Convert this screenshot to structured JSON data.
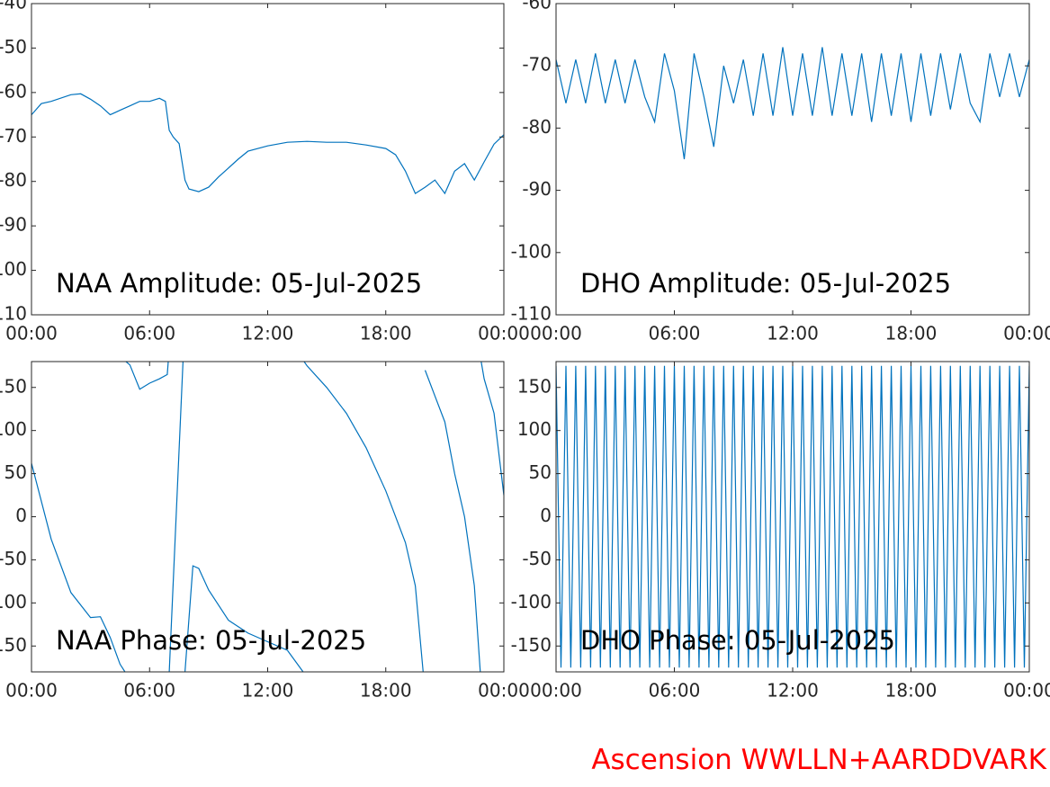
{
  "chart_data": [
    {
      "type": "line",
      "annotation": "NAA Amplitude: 05-Jul-2025",
      "color": "#0072bd",
      "xlim": [
        0,
        24
      ],
      "xticks": [
        {
          "value": 0,
          "label": "00:00"
        },
        {
          "value": 6,
          "label": "06:00"
        },
        {
          "value": 12,
          "label": "12:00"
        },
        {
          "value": 18,
          "label": "18:00"
        },
        {
          "value": 24,
          "label": "00:00"
        }
      ],
      "ylim": [
        -110,
        -40
      ],
      "yticks": [
        -110,
        -100,
        -90,
        -80,
        -70,
        -60,
        -50,
        -40
      ],
      "x": [
        0,
        0.5,
        1,
        2,
        2.5,
        3,
        3.5,
        4,
        4.5,
        5,
        5.5,
        6,
        6.5,
        6.8,
        7,
        7.2,
        7.5,
        7.8,
        8,
        8.5,
        9,
        9.5,
        10,
        10.5,
        11,
        12,
        13,
        14,
        15,
        16,
        17,
        18,
        18.5,
        19,
        19.5,
        20,
        20.5,
        21,
        21.5,
        22,
        22.5,
        23,
        23.5,
        24
      ],
      "values": [
        -65,
        -62.5,
        -62,
        -60.5,
        -60.3,
        -61.5,
        -63,
        -65,
        -64,
        -63,
        -62,
        -62,
        -61.3,
        -62,
        -68.5,
        -70,
        -71.5,
        -79.7,
        -81.7,
        -82.3,
        -81.3,
        -79,
        -77,
        -75,
        -73.2,
        -72,
        -71.2,
        -71,
        -71.2,
        -71.2,
        -71.8,
        -72.6,
        -74,
        -77.7,
        -82.7,
        -81.3,
        -79.7,
        -82.7,
        -77.7,
        -76,
        -79.7,
        -75.6,
        -71.6,
        -69.5
      ]
    },
    {
      "type": "line",
      "annotation": "DHO Amplitude: 05-Jul-2025",
      "color": "#0072bd",
      "xlim": [
        0,
        24
      ],
      "xticks": [
        {
          "value": 0,
          "label": "00:00"
        },
        {
          "value": 6,
          "label": "06:00"
        },
        {
          "value": 12,
          "label": "12:00"
        },
        {
          "value": 18,
          "label": "18:00"
        },
        {
          "value": 24,
          "label": "00:00"
        }
      ],
      "ylim": [
        -110,
        -60
      ],
      "yticks": [
        -110,
        -100,
        -90,
        -80,
        -70,
        -60
      ],
      "x": [
        0,
        0.5,
        1,
        1.5,
        2,
        2.5,
        3,
        3.5,
        4,
        4.5,
        5,
        5.5,
        6,
        6.5,
        7,
        7.5,
        8,
        8.5,
        9,
        9.5,
        10,
        10.5,
        11,
        11.5,
        12,
        12.5,
        13,
        13.5,
        14,
        14.5,
        15,
        15.5,
        16,
        16.5,
        17,
        17.5,
        18,
        18.5,
        19,
        19.5,
        20,
        20.5,
        21,
        21.5,
        22,
        22.5,
        23,
        23.5,
        24
      ],
      "values": [
        -69,
        -76,
        -69,
        -76,
        -68,
        -76,
        -69,
        -76,
        -69,
        -75,
        -79,
        -68,
        -74,
        -85,
        -68,
        -75,
        -83,
        -70,
        -76,
        -69,
        -78,
        -68,
        -78,
        -67,
        -78,
        -68,
        -78,
        -67,
        -78,
        -68,
        -78,
        -68,
        -79,
        -68,
        -78,
        -68,
        -79,
        -68,
        -78,
        -68,
        -77,
        -68,
        -76,
        -79,
        -68,
        -75,
        -68,
        -75,
        -69
      ]
    },
    {
      "type": "line",
      "annotation": "NAA Phase: 05-Jul-2025",
      "color": "#0072bd",
      "xlim": [
        0,
        24
      ],
      "xticks": [
        {
          "value": 0,
          "label": "00:00"
        },
        {
          "value": 6,
          "label": "06:00"
        },
        {
          "value": 12,
          "label": "12:00"
        },
        {
          "value": 18,
          "label": "18:00"
        },
        {
          "value": 24,
          "label": "00:00"
        }
      ],
      "ylim": [
        -180,
        180
      ],
      "yticks": [
        -150,
        -100,
        -50,
        0,
        50,
        100,
        150
      ],
      "x": [
        0,
        1,
        2,
        3,
        3.5,
        4,
        4.5,
        4.75,
        4.76,
        4.8,
        5,
        5.5,
        6,
        6.5,
        6.9,
        6.95,
        6.96,
        7,
        7.7,
        7.71,
        7.8,
        8.2,
        8.5,
        9,
        10,
        11,
        12,
        13,
        13.8,
        13.81,
        13.85,
        14,
        15,
        16,
        17,
        18,
        19,
        19.5,
        19.9,
        19.91,
        20,
        20.5,
        21,
        21.5,
        22,
        22.5,
        22.8,
        22.81,
        22.85,
        23,
        23.5,
        24
      ],
      "values": [
        62,
        -26,
        -88,
        -117,
        -116,
        -140,
        -171,
        -180,
        null,
        180,
        176,
        148,
        155,
        160,
        165,
        180,
        null,
        -180,
        180,
        null,
        -180,
        -57,
        -60,
        -85,
        -120,
        -135,
        -145,
        -155,
        -180,
        null,
        180,
        175,
        150,
        120,
        80,
        30,
        -30,
        -80,
        -180,
        null,
        170,
        140,
        110,
        50,
        0,
        -80,
        -180,
        null,
        180,
        160,
        120,
        25
      ]
    },
    {
      "type": "line",
      "annotation": "DHO Phase: 05-Jul-2025",
      "color": "#0072bd",
      "xlim": [
        0,
        24
      ],
      "xticks": [
        {
          "value": 0,
          "label": "00:00"
        },
        {
          "value": 6,
          "label": "06:00"
        },
        {
          "value": 12,
          "label": "12:00"
        },
        {
          "value": 18,
          "label": "18:00"
        },
        {
          "value": 24,
          "label": "00:00"
        }
      ],
      "ylim": [
        -180,
        180
      ],
      "yticks": [
        -150,
        -100,
        -50,
        0,
        50,
        100,
        150
      ],
      "x": [
        0,
        0.25,
        0.5,
        0.75,
        1,
        1.25,
        1.5,
        1.75,
        2,
        2.25,
        2.5,
        2.75,
        3,
        3.25,
        3.5,
        3.75,
        4,
        4.25,
        4.5,
        4.75,
        5,
        5.25,
        5.5,
        5.75,
        6,
        6.25,
        6.5,
        6.75,
        7,
        7.25,
        7.5,
        7.75,
        8,
        8.25,
        8.5,
        8.75,
        9,
        9.25,
        9.5,
        9.75,
        10,
        10.25,
        10.5,
        10.75,
        11,
        11.25,
        11.5,
        11.75,
        12,
        12.25,
        12.5,
        12.75,
        13,
        13.25,
        13.5,
        13.75,
        14,
        14.25,
        14.5,
        14.75,
        15,
        15.25,
        15.5,
        15.75,
        16,
        16.25,
        16.5,
        16.75,
        17,
        17.25,
        17.5,
        17.75,
        18,
        18.25,
        18.5,
        18.75,
        19,
        19.25,
        19.5,
        19.75,
        20,
        20.25,
        20.5,
        20.75,
        21,
        21.25,
        21.5,
        21.75,
        22,
        22.25,
        22.5,
        22.75,
        23,
        23.25,
        23.5,
        23.75,
        24
      ],
      "values": [
        175,
        -175,
        175,
        -175,
        175,
        -175,
        175,
        -175,
        175,
        -175,
        175,
        -175,
        175,
        -175,
        175,
        -175,
        175,
        -175,
        175,
        -175,
        175,
        -175,
        175,
        -175,
        175,
        -175,
        175,
        -175,
        175,
        -175,
        175,
        -175,
        175,
        -175,
        175,
        -175,
        175,
        -175,
        175,
        -175,
        175,
        -175,
        175,
        -175,
        175,
        -175,
        175,
        -175,
        175,
        -175,
        175,
        -175,
        175,
        -175,
        175,
        -175,
        175,
        -175,
        175,
        -175,
        175,
        -175,
        175,
        -175,
        175,
        -175,
        175,
        -175,
        175,
        -175,
        175,
        -175,
        175,
        -175,
        175,
        -175,
        175,
        -175,
        175,
        -175,
        175,
        -175,
        175,
        -175,
        175,
        -175,
        175,
        -175,
        175,
        -175,
        175,
        -175,
        175,
        -175,
        175,
        -175,
        175
      ]
    }
  ],
  "footer": "Ascension WWLLN+AARDDVARK"
}
